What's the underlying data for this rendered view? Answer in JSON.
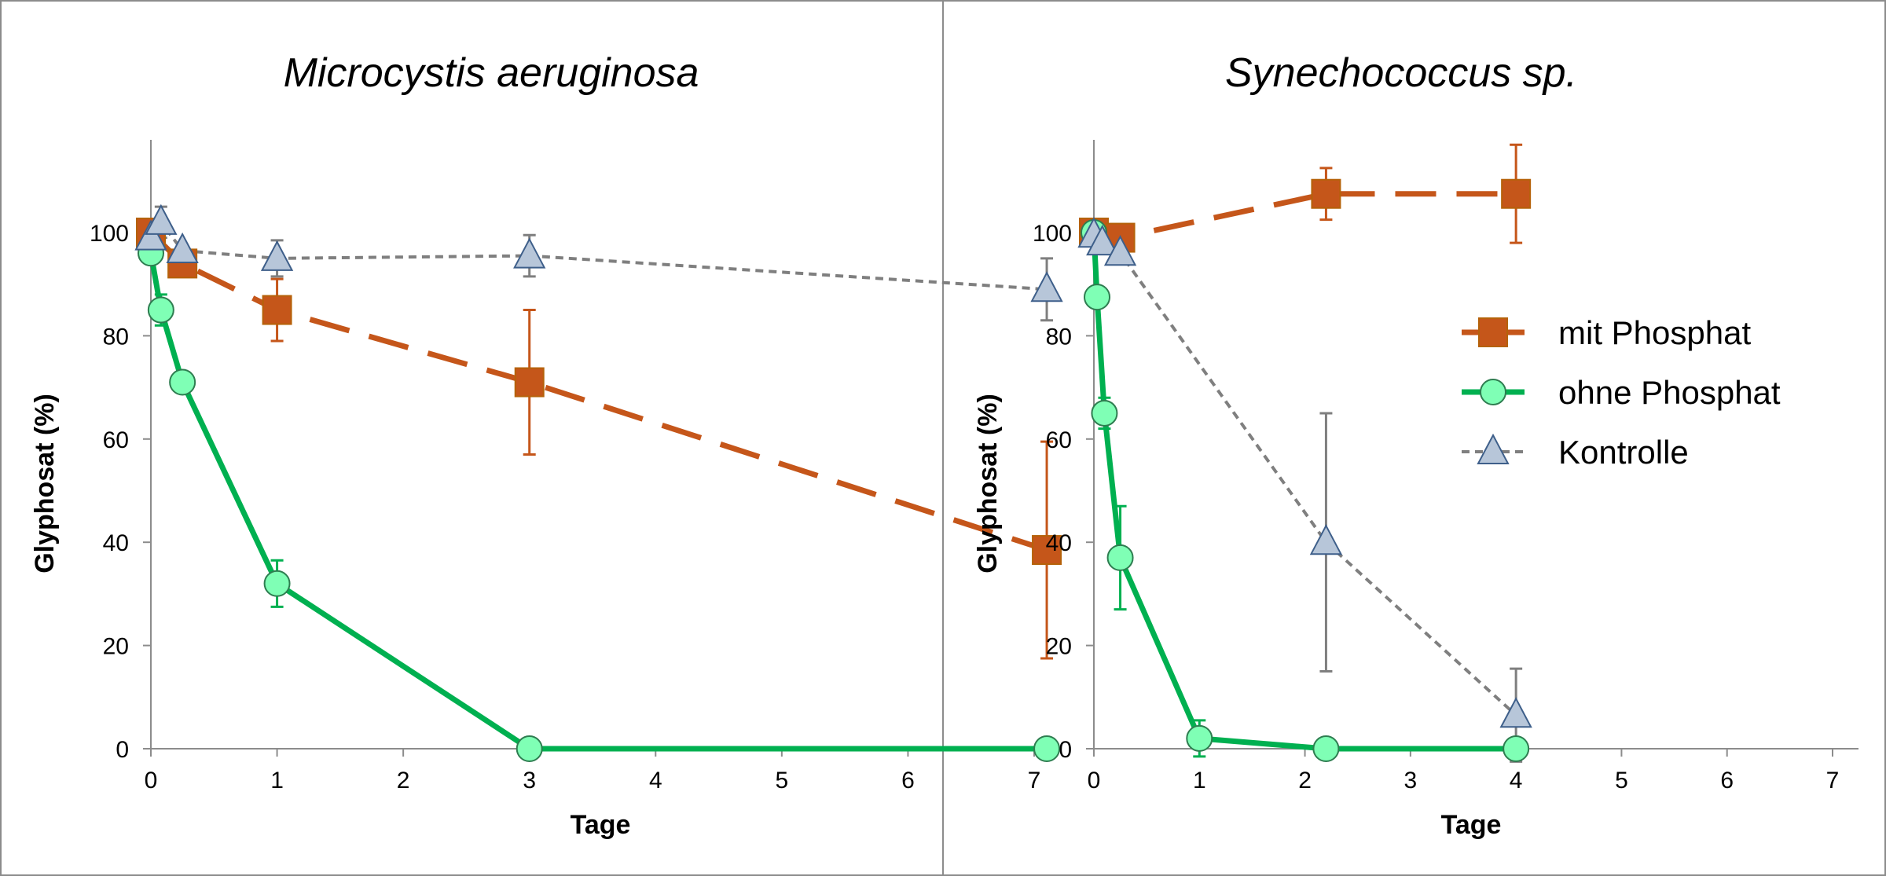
{
  "chart_data": [
    {
      "type": "line",
      "title": "Microcystis aeruginosa",
      "xlabel": "Tage",
      "ylabel": "Glyphosat (%)",
      "xlim": [
        0,
        7
      ],
      "ylim": [
        0,
        115
      ],
      "xticks": [
        "0",
        "1",
        "2",
        "3",
        "4",
        "5",
        "6",
        "7"
      ],
      "yticks": [
        "0",
        "20",
        "40",
        "60",
        "80",
        "100"
      ],
      "grid": false,
      "series": [
        {
          "name": "mit Phosphat",
          "color": "#C5561A",
          "marker": "square",
          "line": "long-dash",
          "points": [
            {
              "x": 0,
              "y": 100,
              "err": 0
            },
            {
              "x": 0.25,
              "y": 94,
              "err": 2
            },
            {
              "x": 1,
              "y": 85,
              "err": 6
            },
            {
              "x": 3,
              "y": 71,
              "err": 14
            },
            {
              "x": 7.1,
              "y": 38.5,
              "err": 21
            }
          ]
        },
        {
          "name": "ohne Phosphat",
          "color": "#00B050",
          "marker": "circle",
          "line": "solid",
          "points": [
            {
              "x": 0,
              "y": 96,
              "err": 2
            },
            {
              "x": 0.08,
              "y": 85,
              "err": 3
            },
            {
              "x": 0.25,
              "y": 71,
              "err": 0
            },
            {
              "x": 1,
              "y": 32,
              "err": 4.5
            },
            {
              "x": 3,
              "y": 0,
              "err": 0
            },
            {
              "x": 7.1,
              "y": 0,
              "err": 0
            }
          ]
        },
        {
          "name": "Kontrolle",
          "color": "#7F7F7F",
          "marker": "triangle",
          "line": "short-dash",
          "points": [
            {
              "x": 0,
              "y": 99,
              "err": 2
            },
            {
              "x": 0.08,
              "y": 102,
              "err": 3
            },
            {
              "x": 0.25,
              "y": 96.5,
              "err": 0
            },
            {
              "x": 1,
              "y": 95,
              "err": 3.5
            },
            {
              "x": 3,
              "y": 95.5,
              "err": 4
            },
            {
              "x": 7.1,
              "y": 89,
              "err": 6
            }
          ]
        }
      ]
    },
    {
      "type": "line",
      "title": "Synechococcus sp.",
      "xlabel": "Tage",
      "ylabel": "Glyphosat (%)",
      "xlim": [
        0,
        7
      ],
      "ylim": [
        0,
        115
      ],
      "xticks": [
        "0",
        "1",
        "2",
        "3",
        "4",
        "5",
        "6",
        "7"
      ],
      "yticks": [
        "0",
        "20",
        "40",
        "60",
        "80",
        "100"
      ],
      "grid": false,
      "legend": "right",
      "series": [
        {
          "name": "mit Phosphat",
          "color": "#C5561A",
          "marker": "square",
          "line": "long-dash",
          "points": [
            {
              "x": 0,
              "y": 100,
              "err": 2
            },
            {
              "x": 0.25,
              "y": 99,
              "err": 0
            },
            {
              "x": 2.2,
              "y": 107.5,
              "err": 5
            },
            {
              "x": 4,
              "y": 107.5,
              "err": 9.5
            }
          ]
        },
        {
          "name": "ohne Phosphat",
          "color": "#00B050",
          "marker": "circle",
          "line": "solid",
          "points": [
            {
              "x": 0,
              "y": 100,
              "err": 0
            },
            {
              "x": 0.03,
              "y": 87.5,
              "err": 0
            },
            {
              "x": 0.1,
              "y": 65,
              "err": 3
            },
            {
              "x": 0.25,
              "y": 37,
              "err": 10
            },
            {
              "x": 1,
              "y": 2,
              "err": 3.5
            },
            {
              "x": 2.2,
              "y": 0,
              "err": 0
            },
            {
              "x": 4,
              "y": 0,
              "err": 0
            }
          ]
        },
        {
          "name": "Kontrolle",
          "color": "#7F7F7F",
          "marker": "triangle",
          "line": "short-dash",
          "points": [
            {
              "x": 0,
              "y": 99.5,
              "err": 0
            },
            {
              "x": 0.08,
              "y": 98,
              "err": 0
            },
            {
              "x": 0.25,
              "y": 96,
              "err": 0
            },
            {
              "x": 2.2,
              "y": 40,
              "err": 25
            },
            {
              "x": 4,
              "y": 6.5,
              "err": 9
            }
          ]
        }
      ]
    }
  ]
}
